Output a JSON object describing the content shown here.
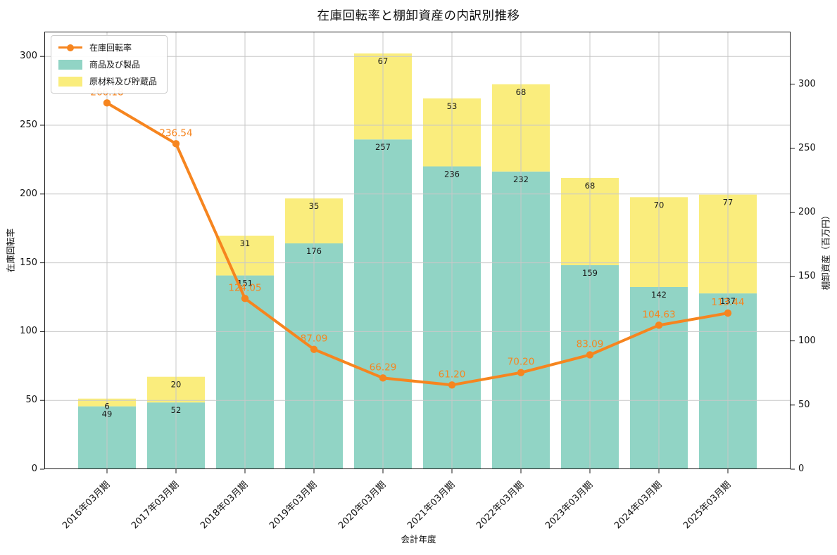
{
  "chart_data": {
    "type": "bar",
    "subtype": "stacked-bars-with-line-overlay",
    "title": "在庫回転率と棚卸資産の内訳別推移",
    "xlabel": "会計年度",
    "ylabel_left": "在庫回転率",
    "ylabel_right": "棚卸資産（百万円）",
    "categories": [
      "2016年03月期",
      "2017年03月期",
      "2018年03月期",
      "2019年03月期",
      "2020年03月期",
      "2021年03月期",
      "2022年03月期",
      "2023年03月期",
      "2024年03月期",
      "2025年03月期"
    ],
    "series": [
      {
        "name": "商品及び製品",
        "kind": "bar",
        "axis": "right",
        "color": "#91D4C5",
        "values": [
          49,
          52,
          151,
          176,
          257,
          236,
          232,
          159,
          142,
          137
        ]
      },
      {
        "name": "原材料及び貯蔵品",
        "kind": "bar",
        "axis": "right",
        "color": "#FAED7D",
        "values": [
          6,
          20,
          31,
          35,
          67,
          53,
          68,
          68,
          70,
          77
        ]
      },
      {
        "name": "在庫回転率",
        "kind": "line",
        "axis": "left",
        "color": "#F6851F",
        "values": [
          266.18,
          236.54,
          124.05,
          87.09,
          66.29,
          61.2,
          70.2,
          83.09,
          104.63,
          113.44
        ],
        "labels": [
          "266.18",
          "236.54",
          "124.05",
          "87.09",
          "66.29",
          "61.20",
          "70.20",
          "83.09",
          "104.63",
          "113.44"
        ]
      }
    ],
    "left_axis": {
      "ticks": [
        0,
        50,
        100,
        150,
        200,
        250,
        300
      ],
      "min": 0,
      "max": 318
    },
    "right_axis": {
      "ticks": [
        0,
        50,
        100,
        150,
        200,
        250,
        300
      ],
      "min": 0,
      "max": 341
    },
    "grid": true,
    "grid_color": "#C8C8C8",
    "spine_color": "#1a1a1a",
    "bar_label_color": "#1a1a1a",
    "legend_position": "upper-left",
    "legend": {
      "items": [
        {
          "label": "在庫回転率",
          "swatch": "line"
        },
        {
          "label": "商品及び製品",
          "swatch": "patch"
        },
        {
          "label": "原材料及び貯蔵品",
          "swatch": "patch"
        }
      ]
    }
  }
}
